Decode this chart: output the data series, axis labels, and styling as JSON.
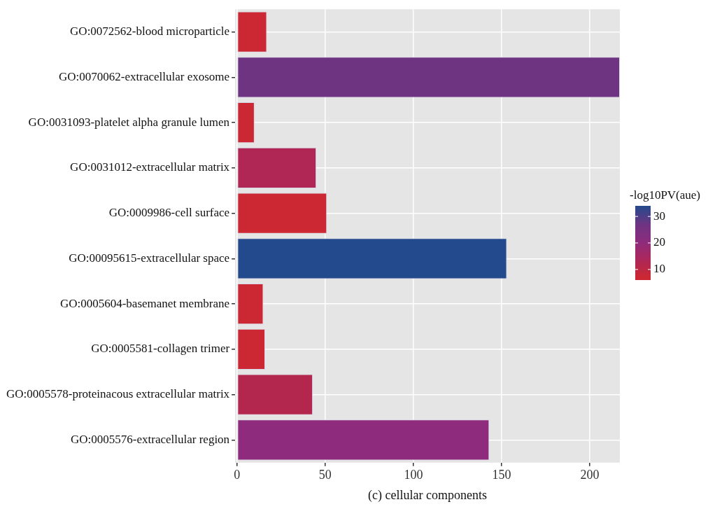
{
  "chart_data": {
    "type": "bar",
    "orientation": "horizontal",
    "xlabel": "(c) cellular components",
    "clabel": "-log10PV(aue)",
    "categories": [
      "GO:0072562-blood microparticle",
      "GO:0070062-extracellular exosome",
      "GO:0031093-platelet alpha granule lumen",
      "GO:0031012-extracellular matrix",
      "GO:0009986-cell surface",
      "GO:00095615-extracellular space",
      "GO:0005604-basemanet membrane",
      "GO:0005581-collagen trimer",
      "GO:0005578-proteinacous extracellular matrix",
      "GO:0005576-extracellular region"
    ],
    "values": [
      17,
      217,
      10,
      45,
      51,
      153,
      15,
      16,
      43,
      143
    ],
    "cvalues": [
      7,
      27,
      7,
      13,
      7,
      34,
      7,
      7,
      12,
      20
    ],
    "colors": [
      "#cc2833",
      "#6e3482",
      "#cc2833",
      "#b02756",
      "#cc2833",
      "#234a8c",
      "#cc2833",
      "#cc2833",
      "#b3274f",
      "#8f2b7c"
    ],
    "clim": [
      6,
      34
    ],
    "cticks": [
      10,
      20,
      30
    ],
    "xlim": [
      -1,
      217
    ],
    "xticks": [
      0,
      50,
      100,
      150,
      200
    ],
    "grid": true
  }
}
